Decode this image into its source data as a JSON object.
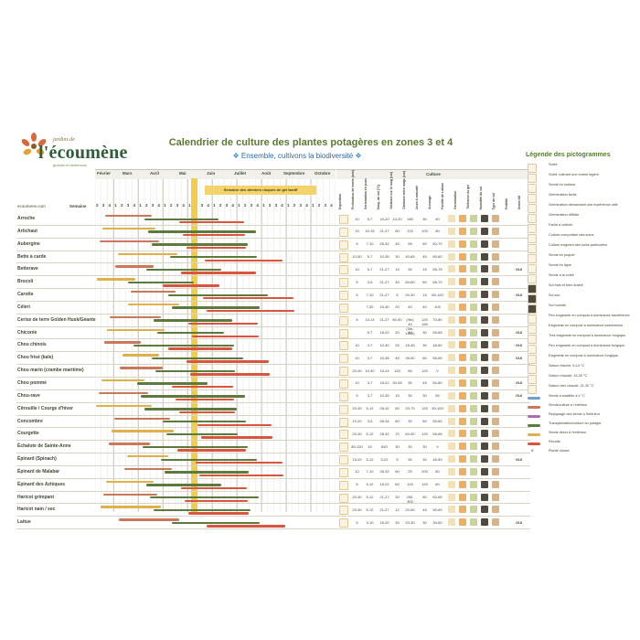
{
  "logo": {
    "small": "jardins de",
    "big": "l'écoumène",
    "sub": "graines et semences"
  },
  "title": "Calendrier de culture des plantes potagères en zones 3 et 4",
  "subtitle": "Ensemble, cultivons la biodiversité",
  "site": "ecoumene.com",
  "semaine_label": "Semaine",
  "months": [
    "Février",
    "Mars",
    "Avril",
    "Mai",
    "Juin",
    "Juillet",
    "Août",
    "Septembre",
    "Octobre"
  ],
  "weeks": [
    "2",
    "3",
    "4",
    "1",
    "2",
    "3",
    "4",
    "1",
    "2",
    "3",
    "4",
    "1",
    "2",
    "3",
    "4",
    "1",
    "2",
    "3",
    "4",
    "1",
    "2",
    "3",
    "4",
    "1",
    "2",
    "3",
    "4",
    "1",
    "2",
    "3",
    "4",
    "1",
    "2",
    "3",
    "4",
    "1",
    "2",
    "3",
    "4"
  ],
  "frost_label": "Semaine des derniers risques de gel tardif",
  "culture_header": "Culture",
  "column_headers": [
    "Exposition",
    "Profondeur de semis (mm)",
    "Germination en jours",
    "Temp. de sol (°C)",
    "Distance sur le rang (cm)",
    "Distance entre rangs (cm)",
    "Jours à maturité",
    "Arrosage",
    "Facilité de culture",
    "Germination",
    "Tolérance au gel",
    "Humidité du sol",
    "Type de sol",
    "Fertilité",
    "Semis tôt"
  ],
  "legend_title": "Légende des pictogrammes",
  "legend": [
    {
      "icon": "sun-icon",
      "label": "Soleil"
    },
    {
      "icon": "partial-shade-icon",
      "label": "Soleil, tolérant une ombre légère"
    },
    {
      "icon": "surface-sowing-icon",
      "label": "Semis en surface"
    },
    {
      "icon": "easy-germination-icon",
      "label": "Germination facile"
    },
    {
      "icon": "experience-germination-icon",
      "label": "Germination demandant une expérience utile"
    },
    {
      "icon": "hard-germination-icon",
      "label": "Germination difficile"
    },
    {
      "icon": "easy-grow-icon",
      "label": "Facile à cultiver"
    },
    {
      "icon": "care-grow-icon",
      "label": "Culture comportant des soins"
    },
    {
      "icon": "special-care-icon",
      "label": "Culture exigeant des soins particuliers"
    },
    {
      "icon": "pocket-sowing-icon",
      "label": "Semis en poquet"
    },
    {
      "icon": "row-sowing-icon",
      "label": "Semis en ligne"
    },
    {
      "icon": "broadcast-sowing-icon",
      "label": "Semis à la volée"
    },
    {
      "icon": "cool-drained-soil-icon",
      "label": "Sol frais et bien drainé"
    },
    {
      "icon": "dry-soil-icon",
      "label": "Sol sec"
    },
    {
      "icon": "wet-soil-icon",
      "label": "Sol humide"
    },
    {
      "icon": "compost-bacterial-icon",
      "label": "Peu exigeante en compost à dominance bactérienne"
    },
    {
      "icon": "compost-bacterial-2-icon",
      "label": "Exigeante en compost à dominance bactérienne"
    },
    {
      "icon": "compost-fungal-icon",
      "label": "Très exigeante en compost à dominance fongique"
    },
    {
      "icon": "compost-fungal-2-icon",
      "label": "Peu exigeante en compost à dominance fongique"
    },
    {
      "icon": "compost-fungal-3-icon",
      "label": "Exigeante en compost à dominance fongique"
    },
    {
      "icon": "cool-season-icon",
      "label": "Saison fraîche: 5-14 °C"
    },
    {
      "icon": "warm-season-icon",
      "label": "Saison chaude: 15-20 °C"
    },
    {
      "icon": "hot-season-icon",
      "label": "Saison très chaude: 21-30 °C"
    }
  ],
  "legend_bars": [
    {
      "color": "#6f9fd1",
      "label": "Semis à stratifier à 4 °C"
    },
    {
      "color": "#c9785a",
      "label": "Semis/culture à l'intérieur"
    },
    {
      "color": "#b06ab0",
      "label": "Repiquage des semis à l'intérieur"
    },
    {
      "color": "#5d7a3e",
      "label": "Transplantation/culture au potager"
    },
    {
      "color": "#e0b04a",
      "label": "Semis direct à l'extérieur"
    },
    {
      "color": "#d9553e",
      "label": "Récolte"
    },
    {
      "color": "",
      "label": "Plante vivace",
      "symbol": "V"
    }
  ],
  "plants": [
    {
      "name": "Arroche",
      "cells": [
        "10",
        "5-7",
        "15-20",
        "10-20",
        "180",
        "30",
        "40"
      ],
      "early": ""
    },
    {
      "name": "Artichaut",
      "cells": [
        "15",
        "10-15",
        "21-27",
        "60",
        "120",
        "100",
        "80"
      ],
      "early": ""
    },
    {
      "name": "Aubergine",
      "cells": [
        "5",
        "7-10",
        "26-32",
        "45",
        "55",
        "60",
        "60-70"
      ],
      "early": ""
    },
    {
      "name": "Bette à carde",
      "cells": [
        "10-50",
        "5-7",
        "10-35",
        "30",
        "40-65",
        "45",
        "50-60"
      ],
      "early": ""
    },
    {
      "name": "Betterave",
      "cells": [
        "10",
        "5-7",
        "21-27",
        "15",
        "30",
        "15",
        "55-75"
      ],
      "early": "OUI"
    },
    {
      "name": "Brocoli",
      "cells": [
        "5",
        "3-5",
        "21-27",
        "45",
        "60-80",
        "60",
        "55-70"
      ],
      "early": ""
    },
    {
      "name": "Carotte",
      "cells": [
        "5",
        "7-10",
        "21-27",
        "5",
        "20-30",
        "15",
        "65-100"
      ],
      "early": "OUI"
    },
    {
      "name": "Céleri",
      "cells": [
        "",
        "7-30",
        "15-30",
        "20",
        "40",
        "40",
        "100"
      ],
      "early": ""
    },
    {
      "name": "Cerise de terre Golden Husk/Géante",
      "cells": [
        "5",
        "10-14",
        "21-27",
        "60-90",
        "(3m) 45 (3m-1000)",
        "120 180",
        "70-80"
      ],
      "early": ""
    },
    {
      "name": "Chicorée",
      "cells": [
        "",
        "5-7",
        "18-22",
        "20",
        "40",
        "30",
        "55-65"
      ],
      "early": "OUI"
    },
    {
      "name": "Chou chinois",
      "cells": [
        "10",
        "3-7",
        "10-30",
        "25",
        "15-45",
        "30",
        "45-50"
      ],
      "early": "OUI"
    },
    {
      "name": "Chou frisé (kale)",
      "cells": [
        "10",
        "3-7",
        "10-35",
        "45",
        "35-50",
        "60",
        "55-65"
      ],
      "early": "OUI"
    },
    {
      "name": "Chou marin (crambe maritime)",
      "cells": [
        "20-30",
        "10-30",
        "15-24",
        "120",
        "80",
        "120",
        "V"
      ],
      "early": ""
    },
    {
      "name": "Chou pommé",
      "cells": [
        "10",
        "3-7",
        "18-22",
        "30-45",
        "30",
        "45",
        "60-80"
      ],
      "early": "OUI"
    },
    {
      "name": "Chou-rave",
      "cells": [
        "5",
        "3-7",
        "10-35",
        "15",
        "30",
        "30",
        "55"
      ],
      "early": "OUI"
    },
    {
      "name": "Citrouille / Courge d'hiver",
      "cells": [
        "20-30",
        "5-12",
        "28-32",
        "60",
        "20-70",
        "120",
        "90-100"
      ],
      "early": ""
    },
    {
      "name": "Concombre",
      "cells": [
        "10-20",
        "3-5",
        "28-34",
        "60",
        "30",
        "60",
        "50-60"
      ],
      "early": ""
    },
    {
      "name": "Courgette",
      "cells": [
        "20-30",
        "5-12",
        "28-32",
        "70",
        "60-90",
        "120",
        "55-65"
      ],
      "early": ""
    },
    {
      "name": "Échalote de Sainte-Anne",
      "cells": [
        "80-120",
        "15",
        "BIO",
        "30",
        "30",
        "30",
        "V"
      ],
      "early": ""
    },
    {
      "name": "Épinard (Spinach)",
      "cells": [
        "15-20",
        "5-12",
        "5-22",
        "5",
        "30",
        "30",
        "45-50"
      ],
      "early": "OUI"
    },
    {
      "name": "Épinard de Malabar",
      "cells": [
        "10",
        "7-10",
        "28-32",
        "60",
        "25",
        "200",
        "80"
      ],
      "early": ""
    },
    {
      "name": "Épinard des Aztèques",
      "cells": [
        "5",
        "5-12",
        "15-22",
        "60",
        "120",
        "120",
        "60"
      ],
      "early": ""
    },
    {
      "name": "Haricot grimpant",
      "cells": [
        "20-30",
        "5-12",
        "21-27",
        "30",
        "200-300",
        "60",
        "60-65"
      ],
      "early": ""
    },
    {
      "name": "Haricot nain / sec",
      "cells": [
        "20-30",
        "5-12",
        "21-27",
        "12",
        "20-50",
        "45",
        "50-60"
      ],
      "early": ""
    },
    {
      "name": "Laitue",
      "cells": [
        "5",
        "3-10",
        "15-20",
        "30",
        "20-30",
        "30",
        "30-60"
      ],
      "early": "OUI"
    }
  ]
}
